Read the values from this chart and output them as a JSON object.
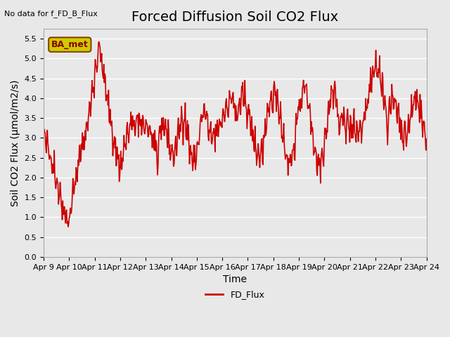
{
  "title": "Forced Diffusion Soil CO2 Flux",
  "top_left_note": "No data for f_FD_B_Flux",
  "ylabel": "Soil CO2 Flux (μmol/m2/s)",
  "xlabel": "Time",
  "ylim": [
    0.0,
    5.75
  ],
  "yticks": [
    0.0,
    0.5,
    1.0,
    1.5,
    2.0,
    2.5,
    3.0,
    3.5,
    4.0,
    4.5,
    5.0,
    5.5
  ],
  "xtick_labels": [
    "Apr 9",
    "Apr 10",
    "Apr 11",
    "Apr 12",
    "Apr 13",
    "Apr 14",
    "Apr 15",
    "Apr 16",
    "Apr 17",
    "Apr 18",
    "Apr 19",
    "Apr 20",
    "Apr 21",
    "Apr 22",
    "Apr 23",
    "Apr 24"
  ],
  "line_color": "#cc0000",
  "line_width": 1.2,
  "legend_label": "FD_Flux",
  "legend_line_color": "#cc0000",
  "bg_color": "#e8e8e8",
  "plot_bg_color": "#e8e8e8",
  "grid_color": "#ffffff",
  "grid_linewidth": 1.0,
  "ba_met_box_color": "#cccc00",
  "ba_met_text": "BA_met",
  "title_fontsize": 14,
  "axis_fontsize": 10,
  "tick_fontsize": 8
}
